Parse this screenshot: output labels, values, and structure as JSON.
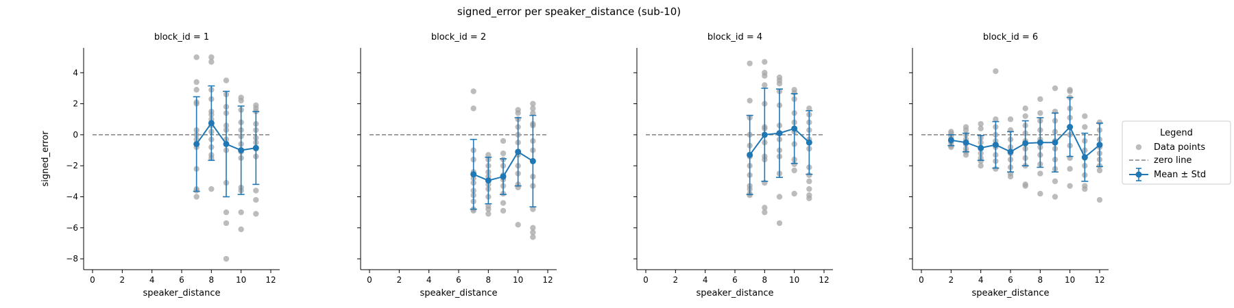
{
  "figure": {
    "title": "signed_error per speaker_distance (sub-10)"
  },
  "chart_data": {
    "type": "scatter",
    "shared_y_axis": true,
    "xlabel": "speaker_distance",
    "ylabel": "signed_error",
    "xlim": [
      -0.6,
      12.6
    ],
    "ylim": [
      -8.7,
      5.6
    ],
    "xticks": [
      0,
      2,
      4,
      6,
      8,
      10,
      12
    ],
    "yticks": [
      -8,
      -6,
      -4,
      -2,
      0,
      2,
      4
    ],
    "zero_line": 0,
    "colors": {
      "points": "#a6a6a6",
      "mean": "#1f77b4",
      "zero_line": "#7f7f7f"
    },
    "legend": {
      "title": "Legend",
      "placement": "right",
      "entries": [
        "Data points",
        "zero line",
        "Mean ± Std"
      ]
    },
    "panels": [
      {
        "title": "block_id = 1",
        "mean": [
          {
            "x": 7,
            "mean": -0.6,
            "std": 3.05
          },
          {
            "x": 8,
            "mean": 0.75,
            "std": 2.4
          },
          {
            "x": 9,
            "mean": -0.6,
            "std": 3.4
          },
          {
            "x": 10,
            "mean": -1.0,
            "std": 2.85
          },
          {
            "x": 11,
            "mean": -0.85,
            "std": 2.35
          }
        ],
        "points": [
          {
            "x": 7,
            "y": [
              5.0,
              3.4,
              2.9,
              2.1,
              2.0,
              0.3,
              0.0,
              -0.3,
              -0.8,
              -2.2,
              -3.5,
              -3.6,
              -4.0
            ]
          },
          {
            "x": 8,
            "y": [
              5.0,
              4.7,
              2.9,
              2.3,
              1.5,
              1.3,
              1.0,
              0.6,
              0.2,
              -0.3,
              -0.8,
              -1.3,
              -1.5,
              -3.5
            ]
          },
          {
            "x": 9,
            "y": [
              3.5,
              2.6,
              1.8,
              1.4,
              0.6,
              0.3,
              -0.3,
              -0.6,
              -1.0,
              -3.1,
              -5.0,
              -5.7,
              -8.0
            ]
          },
          {
            "x": 10,
            "y": [
              2.4,
              2.2,
              1.6,
              0.8,
              0.3,
              -0.1,
              -0.6,
              -1.1,
              -1.5,
              -3.4,
              -3.6,
              -5.0,
              -6.1
            ]
          },
          {
            "x": 11,
            "y": [
              1.9,
              1.7,
              1.5,
              0.7,
              0.3,
              -0.2,
              -0.5,
              -0.9,
              -1.4,
              -3.6,
              -4.2,
              -5.1
            ]
          }
        ]
      },
      {
        "title": "block_id = 2",
        "mean": [
          {
            "x": 7,
            "mean": -2.55,
            "std": 2.25
          },
          {
            "x": 8,
            "mean": -2.95,
            "std": 1.5
          },
          {
            "x": 9,
            "mean": -2.7,
            "std": 1.15
          },
          {
            "x": 10,
            "mean": -1.1,
            "std": 2.2
          },
          {
            "x": 11,
            "mean": -1.7,
            "std": 2.95
          }
        ],
        "points": [
          {
            "x": 7,
            "y": [
              2.8,
              1.7,
              -1.0,
              -1.6,
              -2.4,
              -2.8,
              -3.1,
              -3.6,
              -3.9,
              -4.3,
              -4.8,
              -4.9
            ]
          },
          {
            "x": 8,
            "y": [
              -1.3,
              -1.6,
              -2.0,
              -2.4,
              -2.7,
              -3.2,
              -3.5,
              -4.0,
              -4.6,
              -4.8,
              -5.1
            ]
          },
          {
            "x": 9,
            "y": [
              -0.4,
              -1.2,
              -1.6,
              -2.0,
              -2.6,
              -2.9,
              -3.3,
              -3.8,
              -4.4,
              -4.9
            ]
          },
          {
            "x": 10,
            "y": [
              1.6,
              1.4,
              1.0,
              0.5,
              0.0,
              -0.5,
              -1.3,
              -2.0,
              -2.5,
              -3.2,
              -3.4,
              -5.8
            ]
          },
          {
            "x": 11,
            "y": [
              2.0,
              1.7,
              1.4,
              0.7,
              0.6,
              -0.4,
              -1.0,
              -2.7,
              -3.3,
              -4.8,
              -6.0,
              -6.3,
              -6.6
            ]
          }
        ]
      },
      {
        "title": "block_id = 4",
        "mean": [
          {
            "x": 7,
            "mean": -1.3,
            "std": 2.55
          },
          {
            "x": 8,
            "mean": 0.0,
            "std": 3.0
          },
          {
            "x": 9,
            "mean": 0.1,
            "std": 2.85
          },
          {
            "x": 10,
            "mean": 0.4,
            "std": 2.25
          },
          {
            "x": 11,
            "mean": -0.5,
            "std": 2.05
          }
        ],
        "points": [
          {
            "x": 7,
            "y": [
              4.6,
              2.2,
              1.1,
              0.0,
              -0.7,
              -1.4,
              -2.0,
              -2.6,
              -3.3,
              -3.5,
              -3.8,
              -3.9
            ]
          },
          {
            "x": 8,
            "y": [
              4.7,
              4.0,
              3.8,
              3.2,
              2.0,
              0.5,
              0.4,
              -0.5,
              -1.4,
              -1.6,
              -3.1,
              -4.7,
              -5.0
            ]
          },
          {
            "x": 9,
            "y": [
              3.7,
              3.5,
              3.3,
              2.8,
              1.9,
              0.6,
              -0.3,
              -1.0,
              -1.4,
              -2.5,
              -4.0,
              -5.7
            ]
          },
          {
            "x": 10,
            "y": [
              2.9,
              2.7,
              2.3,
              1.4,
              0.8,
              0.2,
              -0.6,
              -1.6,
              -1.9,
              -2.3,
              -3.8
            ]
          },
          {
            "x": 11,
            "y": [
              1.7,
              1.3,
              0.8,
              0.3,
              -0.3,
              -0.9,
              -2.1,
              -2.6,
              -3.0,
              -3.5,
              -3.9,
              -4.1
            ]
          }
        ]
      },
      {
        "title": "block_id = 6",
        "mean": [
          {
            "x": 2,
            "mean": -0.35,
            "std": 0.35
          },
          {
            "x": 3,
            "mean": -0.5,
            "std": 0.6
          },
          {
            "x": 4,
            "mean": -0.85,
            "std": 0.8
          },
          {
            "x": 5,
            "mean": -0.65,
            "std": 1.5
          },
          {
            "x": 6,
            "mean": -1.1,
            "std": 1.3
          },
          {
            "x": 7,
            "mean": -0.55,
            "std": 1.45
          },
          {
            "x": 8,
            "mean": -0.5,
            "std": 1.6
          },
          {
            "x": 9,
            "mean": -0.5,
            "std": 1.9
          },
          {
            "x": 10,
            "mean": 0.5,
            "std": 1.9
          },
          {
            "x": 11,
            "mean": -1.45,
            "std": 1.55
          },
          {
            "x": 12,
            "mean": -0.65,
            "std": 1.4
          }
        ],
        "points": [
          {
            "x": 2,
            "y": [
              0.2,
              0.1,
              -0.1,
              -0.3,
              -0.5,
              -0.7,
              -0.8
            ]
          },
          {
            "x": 3,
            "y": [
              0.5,
              0.3,
              0.0,
              -0.3,
              -0.6,
              -0.9,
              -1.1,
              -1.3
            ]
          },
          {
            "x": 4,
            "y": [
              0.7,
              0.4,
              -0.2,
              -0.5,
              -0.9,
              -1.2,
              -1.5,
              -1.7,
              -2.0
            ]
          },
          {
            "x": 5,
            "y": [
              4.1,
              1.0,
              0.5,
              0.0,
              -0.4,
              -0.8,
              -1.3,
              -1.7,
              -2.2
            ]
          },
          {
            "x": 6,
            "y": [
              1.0,
              0.3,
              -0.3,
              -0.8,
              -1.2,
              -1.6,
              -2.1,
              -2.5,
              -2.7
            ]
          },
          {
            "x": 7,
            "y": [
              1.7,
              1.2,
              0.6,
              0.1,
              -0.4,
              -0.9,
              -1.5,
              -2.0,
              -3.2,
              -3.3
            ]
          },
          {
            "x": 8,
            "y": [
              2.3,
              1.4,
              0.9,
              0.3,
              -0.3,
              -0.8,
              -1.3,
              -1.9,
              -2.5,
              -3.8
            ]
          },
          {
            "x": 9,
            "y": [
              3.0,
              1.5,
              0.9,
              0.2,
              -0.4,
              -0.9,
              -1.6,
              -2.2,
              -3.0,
              -4.0
            ]
          },
          {
            "x": 10,
            "y": [
              2.9,
              2.8,
              2.4,
              1.7,
              1.1,
              0.5,
              0.0,
              -0.7,
              -1.5,
              -2.2,
              -3.3
            ]
          },
          {
            "x": 11,
            "y": [
              1.2,
              0.5,
              -0.4,
              -1.0,
              -1.5,
              -2.0,
              -2.6,
              -3.3,
              -3.5
            ]
          },
          {
            "x": 12,
            "y": [
              0.8,
              0.3,
              -0.3,
              -0.8,
              -1.2,
              -1.6,
              -2.0,
              -2.3,
              -4.2
            ]
          }
        ]
      }
    ]
  }
}
